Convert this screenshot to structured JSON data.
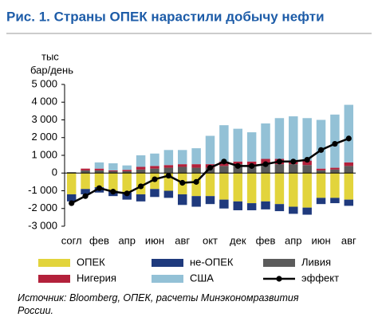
{
  "chart_data": {
    "type": "bar",
    "title": "Рис. 1. Страны ОПЕК нарастили добычу нефти",
    "y_label": [
      "тыс",
      "бар/день"
    ],
    "source": "Источник: Bloomberg, ОПЕК, расчеты Минэкономразвития России.",
    "categories": [
      "согл",
      null,
      "фев",
      null,
      "апр",
      null,
      "июн",
      null,
      "авг",
      null,
      "окт",
      null,
      "дек",
      null,
      "фев",
      null,
      "апр",
      null,
      "июн",
      null,
      "авг"
    ],
    "ylim": [
      -3000,
      5000
    ],
    "yticks": [
      {
        "value": -3000,
        "label": "-3 000"
      },
      {
        "value": -2000,
        "label": "-2 000"
      },
      {
        "value": -1000,
        "label": "-1 000"
      },
      0,
      {
        "value": 1000,
        "label": "1 000"
      },
      {
        "value": 2000,
        "label": "2 000"
      },
      {
        "value": 3000,
        "label": "3 000"
      },
      {
        "value": 4000,
        "label": "4 000"
      },
      {
        "value": 5000,
        "label": "5 000"
      }
    ],
    "series": [
      {
        "name": "ОПЕК",
        "color": "#e2d43c",
        "values": [
          -1200,
          -900,
          -800,
          -1000,
          -1100,
          -1200,
          -900,
          -1000,
          -1200,
          -1300,
          -1300,
          -1500,
          -1600,
          -1700,
          -1600,
          -1750,
          -1900,
          -1950,
          -1400,
          -1400,
          -1500
        ]
      },
      {
        "name": "не-ОПЕК",
        "color": "#1f3a7d",
        "values": [
          -400,
          -300,
          -300,
          -300,
          -400,
          -400,
          -450,
          -400,
          -600,
          -600,
          -450,
          -500,
          -500,
          -400,
          -450,
          -400,
          -400,
          -400,
          -350,
          -300,
          -350
        ]
      },
      {
        "name": "Ливия",
        "color": "#5b5b5b",
        "values": [
          50,
          150,
          150,
          100,
          100,
          200,
          250,
          300,
          350,
          300,
          300,
          400,
          500,
          450,
          500,
          500,
          500,
          450,
          150,
          200,
          400
        ]
      },
      {
        "name": "Нигерия",
        "color": "#b3213b",
        "values": [
          0,
          100,
          100,
          50,
          80,
          150,
          150,
          150,
          150,
          200,
          200,
          250,
          150,
          200,
          300,
          300,
          200,
          250,
          100,
          100,
          200
        ]
      },
      {
        "name": "США",
        "color": "#93c1d6",
        "values": [
          0,
          0,
          350,
          400,
          250,
          650,
          700,
          850,
          800,
          900,
          1600,
          2050,
          1850,
          1650,
          2000,
          2300,
          2500,
          2400,
          2750,
          3000,
          3250
        ]
      },
      {
        "name": "эффект",
        "color": "#000000",
        "type": "line",
        "values": [
          -1700,
          -1300,
          -850,
          -1050,
          -1150,
          -750,
          -350,
          -150,
          -550,
          -500,
          300,
          650,
          400,
          400,
          500,
          650,
          650,
          750,
          1300,
          1650,
          1950
        ]
      }
    ]
  }
}
